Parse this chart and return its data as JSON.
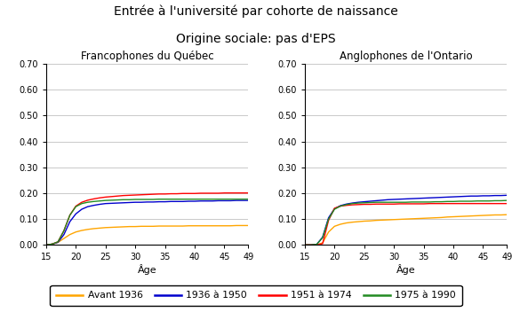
{
  "title_line1": "Entrée à l'université par cohorte de naissance",
  "title_line2": "Origine sociale: pas d'EPS",
  "subtitle_left": "Francophones du Québec",
  "subtitle_right": "Anglophones de l'Ontario",
  "xlabel": "Âge",
  "xlim": [
    15,
    49
  ],
  "ylim": [
    0.0,
    0.7
  ],
  "xticks": [
    15,
    20,
    25,
    30,
    35,
    40,
    45,
    49
  ],
  "yticks": [
    0.0,
    0.1,
    0.2,
    0.3,
    0.4,
    0.5,
    0.6,
    0.7
  ],
  "colors": {
    "avant1936": "#FFA500",
    "c1936_1950": "#0000CD",
    "c1951_1974": "#FF0000",
    "c1975_1990": "#228B22"
  },
  "legend_labels": [
    "Avant 1936",
    "1936 à 1950",
    "1951 à 1974",
    "1975 à 1990"
  ],
  "ages": [
    15,
    16,
    17,
    18,
    19,
    20,
    21,
    22,
    23,
    24,
    25,
    26,
    27,
    28,
    29,
    30,
    31,
    32,
    33,
    34,
    35,
    36,
    37,
    38,
    39,
    40,
    41,
    42,
    43,
    44,
    45,
    46,
    47,
    48,
    49
  ],
  "left_avant1936": [
    0.0,
    0.003,
    0.01,
    0.025,
    0.04,
    0.05,
    0.056,
    0.06,
    0.063,
    0.065,
    0.067,
    0.068,
    0.069,
    0.07,
    0.071,
    0.071,
    0.072,
    0.072,
    0.072,
    0.073,
    0.073,
    0.073,
    0.073,
    0.073,
    0.074,
    0.074,
    0.074,
    0.074,
    0.074,
    0.074,
    0.074,
    0.074,
    0.075,
    0.075,
    0.075
  ],
  "left_1936_1950": [
    0.0,
    0.003,
    0.01,
    0.04,
    0.09,
    0.12,
    0.138,
    0.148,
    0.153,
    0.157,
    0.16,
    0.161,
    0.162,
    0.163,
    0.164,
    0.165,
    0.165,
    0.166,
    0.166,
    0.167,
    0.167,
    0.168,
    0.168,
    0.168,
    0.169,
    0.169,
    0.17,
    0.17,
    0.17,
    0.171,
    0.171,
    0.171,
    0.172,
    0.172,
    0.172
  ],
  "left_1951_1974": [
    0.0,
    0.003,
    0.012,
    0.055,
    0.115,
    0.15,
    0.165,
    0.173,
    0.178,
    0.182,
    0.185,
    0.187,
    0.189,
    0.191,
    0.192,
    0.193,
    0.194,
    0.195,
    0.196,
    0.197,
    0.197,
    0.198,
    0.198,
    0.199,
    0.199,
    0.199,
    0.2,
    0.2,
    0.2,
    0.2,
    0.201,
    0.201,
    0.201,
    0.201,
    0.201
  ],
  "left_1975_1990": [
    0.0,
    0.003,
    0.012,
    0.055,
    0.115,
    0.148,
    0.16,
    0.165,
    0.168,
    0.17,
    0.172,
    0.173,
    0.174,
    0.175,
    0.175,
    0.176,
    0.176,
    0.176,
    0.176,
    0.177,
    0.177,
    0.177,
    0.177,
    0.177,
    0.177,
    0.177,
    0.177,
    0.177,
    0.177,
    0.177,
    0.177,
    0.177,
    0.177,
    0.177,
    0.177
  ],
  "right_avant1936": [
    0.0,
    0.0,
    0.0,
    0.008,
    0.05,
    0.072,
    0.08,
    0.085,
    0.088,
    0.09,
    0.092,
    0.093,
    0.095,
    0.096,
    0.097,
    0.098,
    0.099,
    0.1,
    0.101,
    0.102,
    0.103,
    0.104,
    0.105,
    0.106,
    0.108,
    0.109,
    0.11,
    0.111,
    0.112,
    0.113,
    0.114,
    0.115,
    0.116,
    0.116,
    0.117
  ],
  "right_1936_1950": [
    0.0,
    0.0,
    0.002,
    0.03,
    0.105,
    0.14,
    0.152,
    0.158,
    0.162,
    0.165,
    0.167,
    0.169,
    0.171,
    0.173,
    0.175,
    0.176,
    0.177,
    0.178,
    0.179,
    0.18,
    0.181,
    0.182,
    0.183,
    0.184,
    0.185,
    0.186,
    0.187,
    0.188,
    0.189,
    0.189,
    0.19,
    0.19,
    0.191,
    0.191,
    0.192
  ],
  "right_1951_1974": [
    0.0,
    0.0,
    0.0,
    0.005,
    0.095,
    0.142,
    0.15,
    0.153,
    0.155,
    0.156,
    0.157,
    0.157,
    0.158,
    0.158,
    0.158,
    0.158,
    0.159,
    0.159,
    0.159,
    0.159,
    0.159,
    0.16,
    0.16,
    0.16,
    0.16,
    0.16,
    0.16,
    0.16,
    0.16,
    0.16,
    0.16,
    0.16,
    0.16,
    0.16,
    0.16
  ],
  "right_1975_1990": [
    0.0,
    0.0,
    0.002,
    0.028,
    0.1,
    0.138,
    0.15,
    0.156,
    0.16,
    0.162,
    0.163,
    0.164,
    0.165,
    0.165,
    0.165,
    0.165,
    0.165,
    0.165,
    0.166,
    0.166,
    0.166,
    0.166,
    0.167,
    0.167,
    0.168,
    0.168,
    0.169,
    0.169,
    0.169,
    0.17,
    0.17,
    0.17,
    0.171,
    0.171,
    0.172
  ]
}
